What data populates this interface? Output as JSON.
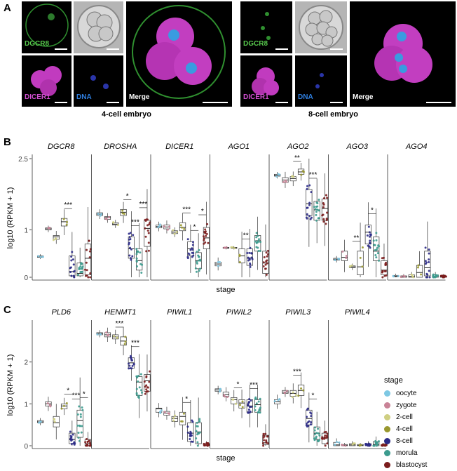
{
  "panels": {
    "a": "A",
    "b": "B",
    "c": "C"
  },
  "micro": {
    "dgcr8": "DGCR8",
    "dicer1": "DICER1",
    "dna": "DNA",
    "merge": "Merge",
    "caption_4cell": "4-cell embryo",
    "caption_8cell": "8-cell embryo"
  },
  "axes": {
    "ylabel": "log10 (RPKM + 1)",
    "xlabel": "stage"
  },
  "legend": {
    "title": "stage",
    "items": [
      {
        "label": "oocyte",
        "color": "#7ec8e3"
      },
      {
        "label": "zygote",
        "color": "#c98397"
      },
      {
        "label": "2-cell",
        "color": "#cfcf82"
      },
      {
        "label": "4-cell",
        "color": "#99982f"
      },
      {
        "label": "8-cell",
        "color": "#2b2a86"
      },
      {
        "label": "morula",
        "color": "#3c9b8e"
      },
      {
        "label": "blastocyst",
        "color": "#7b1c1c"
      }
    ]
  },
  "chart_data": [
    {
      "type": "box",
      "panel": "B",
      "categories": [
        "oocyte",
        "zygote",
        "2-cell",
        "4-cell",
        "8-cell",
        "morula",
        "blastocyst"
      ],
      "ylim": [
        0,
        2.5
      ],
      "yticks": [
        "0",
        "1",
        "2.5"
      ],
      "ytick_values": [
        0,
        1,
        2.5
      ],
      "genes": [
        {
          "name": "DGCR8",
          "medians": [
            0.43,
            1.02,
            0.85,
            1.17,
            0.12,
            0.08,
            0.4
          ],
          "q1": [
            0.42,
            1.0,
            0.8,
            1.08,
            0.03,
            0.03,
            0.05
          ],
          "q3": [
            0.45,
            1.04,
            0.88,
            1.24,
            0.45,
            0.3,
            0.7
          ],
          "sig": [
            "***"
          ]
        },
        {
          "name": "DROSHA",
          "medians": [
            1.33,
            1.26,
            1.12,
            1.37,
            0.6,
            0.35,
            1.03
          ],
          "q1": [
            1.3,
            1.22,
            1.1,
            1.3,
            0.4,
            0.15,
            0.65
          ],
          "q3": [
            1.36,
            1.28,
            1.15,
            1.43,
            0.85,
            0.6,
            1.2
          ],
          "sig": [
            "*",
            "***",
            "***"
          ]
        },
        {
          "name": "DICER1",
          "medians": [
            1.07,
            1.06,
            0.95,
            1.05,
            0.6,
            0.35,
            0.83
          ],
          "q1": [
            1.04,
            1.02,
            0.92,
            0.98,
            0.45,
            0.18,
            0.6
          ],
          "q3": [
            1.1,
            1.1,
            0.98,
            1.15,
            0.75,
            0.52,
            1.05
          ],
          "sig": [
            "***",
            "*",
            "*"
          ]
        },
        {
          "name": "AGO1",
          "medians": [
            0.28,
            0.62,
            0.62,
            0.45,
            0.4,
            0.77,
            0.3
          ],
          "q1": [
            0.24,
            0.61,
            0.61,
            0.3,
            0.25,
            0.55,
            0.08
          ],
          "q3": [
            0.32,
            0.63,
            0.63,
            0.6,
            0.6,
            0.88,
            0.55
          ],
          "sig": [
            "**"
          ]
        },
        {
          "name": "AGO2",
          "medians": [
            2.15,
            2.05,
            2.08,
            2.22,
            1.55,
            1.42,
            1.45
          ],
          "q1": [
            2.13,
            2.0,
            2.03,
            2.17,
            1.3,
            1.2,
            1.2
          ],
          "q3": [
            2.17,
            2.1,
            2.12,
            2.28,
            1.85,
            1.6,
            1.65
          ],
          "sig": [
            "**",
            "***"
          ]
        },
        {
          "name": "AGO3",
          "medians": [
            0.38,
            0.42,
            0.22,
            0.22,
            0.95,
            0.55,
            0.15
          ],
          "q1": [
            0.36,
            0.35,
            0.2,
            0.05,
            0.7,
            0.35,
            0.05
          ],
          "q3": [
            0.4,
            0.55,
            0.24,
            0.55,
            1.1,
            0.85,
            0.35
          ],
          "sig": [
            "**",
            "*"
          ]
        },
        {
          "name": "AGO4",
          "medians": [
            0.02,
            0.01,
            0.02,
            0.1,
            0.2,
            0.02,
            0.01
          ],
          "q1": [
            0.01,
            0.0,
            0.0,
            0.0,
            0.03,
            0.0,
            0.0
          ],
          "q3": [
            0.04,
            0.03,
            0.05,
            0.25,
            0.55,
            0.05,
            0.03
          ],
          "sig": []
        }
      ]
    },
    {
      "type": "box",
      "panel": "C",
      "categories": [
        "oocyte",
        "zygote",
        "2-cell",
        "4-cell",
        "8-cell",
        "morula",
        "blastocyst"
      ],
      "ylim": [
        0,
        2.9
      ],
      "yticks": [
        "0",
        "1",
        "2"
      ],
      "ytick_values": [
        0,
        1,
        2
      ],
      "genes": [
        {
          "name": "PLD6",
          "medians": [
            0.57,
            1.0,
            0.55,
            0.95,
            0.15,
            0.6,
            0.05
          ],
          "q1": [
            0.55,
            0.95,
            0.45,
            0.88,
            0.05,
            0.2,
            0.0
          ],
          "q3": [
            0.6,
            1.05,
            0.7,
            1.0,
            0.3,
            0.85,
            0.15
          ],
          "sig": [
            "*",
            "***",
            "*"
          ]
        },
        {
          "name": "HENMT1",
          "medians": [
            2.68,
            2.65,
            2.6,
            2.5,
            1.98,
            1.52,
            1.55
          ],
          "q1": [
            2.65,
            2.6,
            2.55,
            2.4,
            1.85,
            1.2,
            1.3
          ],
          "q3": [
            2.7,
            2.7,
            2.65,
            2.6,
            2.1,
            1.65,
            1.7
          ],
          "sig": [
            "***",
            "***"
          ]
        },
        {
          "name": "PIWIL1",
          "medians": [
            0.88,
            0.78,
            0.65,
            0.7,
            0.3,
            0.33,
            0.0
          ],
          "q1": [
            0.8,
            0.73,
            0.58,
            0.5,
            0.1,
            0.05,
            0.0
          ],
          "q3": [
            0.9,
            0.82,
            0.7,
            0.8,
            0.55,
            0.55,
            0.05
          ],
          "sig": [
            "*"
          ]
        },
        {
          "name": "PIWIL2",
          "medians": [
            1.33,
            1.22,
            1.1,
            1.02,
            0.95,
            0.98,
            0.07
          ],
          "q1": [
            1.3,
            1.18,
            1.0,
            0.9,
            0.8,
            0.8,
            0.03
          ],
          "q3": [
            1.36,
            1.28,
            1.15,
            1.1,
            1.1,
            1.1,
            0.25
          ],
          "sig": [
            "*",
            "***"
          ]
        },
        {
          "name": "PIWIL3",
          "medians": [
            1.05,
            1.28,
            1.25,
            1.32,
            0.65,
            0.3,
            0.2
          ],
          "q1": [
            1.0,
            1.25,
            1.18,
            1.2,
            0.5,
            0.15,
            0.05
          ],
          "q3": [
            1.1,
            1.32,
            1.32,
            1.45,
            0.85,
            0.45,
            0.3
          ],
          "sig": [
            "***",
            "*"
          ]
        },
        {
          "name": "PIWIL4",
          "medians": [
            0.02,
            0.01,
            0.02,
            0.01,
            0.02,
            0.03,
            0.01
          ],
          "q1": [
            0.0,
            0.0,
            0.0,
            0.0,
            0.0,
            0.0,
            0.0
          ],
          "q3": [
            0.08,
            0.03,
            0.05,
            0.03,
            0.05,
            0.1,
            0.03
          ],
          "sig": []
        }
      ]
    }
  ]
}
